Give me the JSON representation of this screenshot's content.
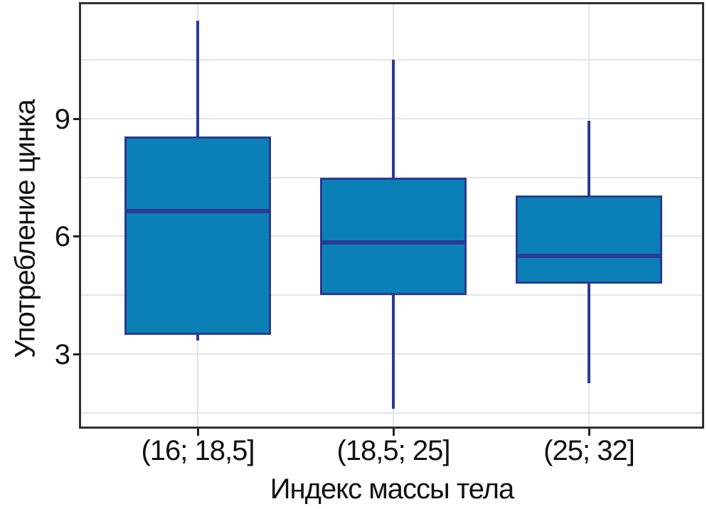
{
  "chart_data": {
    "type": "boxplot",
    "title": "",
    "xlabel": "Индекс массы тела",
    "ylabel": "Употребление цинка",
    "categories": [
      "(16; 18,5]",
      "(18,5; 25]",
      "(25; 32]"
    ],
    "y_ticks": [
      3,
      6,
      9
    ],
    "ylim": [
      1.1,
      11.95
    ],
    "gridlines_y": [
      1.5,
      3,
      4.5,
      6,
      7.5,
      9,
      10.5
    ],
    "grid": true,
    "legend_position": "none",
    "series": [
      {
        "category": "(16; 18,5]",
        "whisker_low": 3.35,
        "q1": 3.5,
        "median": 6.65,
        "q3": 8.55,
        "whisker_high": 11.5
      },
      {
        "category": "(18,5; 25]",
        "whisker_low": 1.6,
        "q1": 4.5,
        "median": 5.85,
        "q3": 7.5,
        "whisker_high": 10.5
      },
      {
        "category": "(25; 32]",
        "whisker_low": 2.25,
        "q1": 4.8,
        "median": 5.5,
        "q3": 7.05,
        "whisker_high": 8.95
      }
    ],
    "colors": {
      "box_fill": "#0a80b7",
      "box_border": "#2b3a94",
      "median": "#2b3a94",
      "whisker": "#2b3a94",
      "grid": "#e4e4ee",
      "frame": "#2f2f2f",
      "text": "#111111",
      "background": "#ffffff"
    }
  }
}
